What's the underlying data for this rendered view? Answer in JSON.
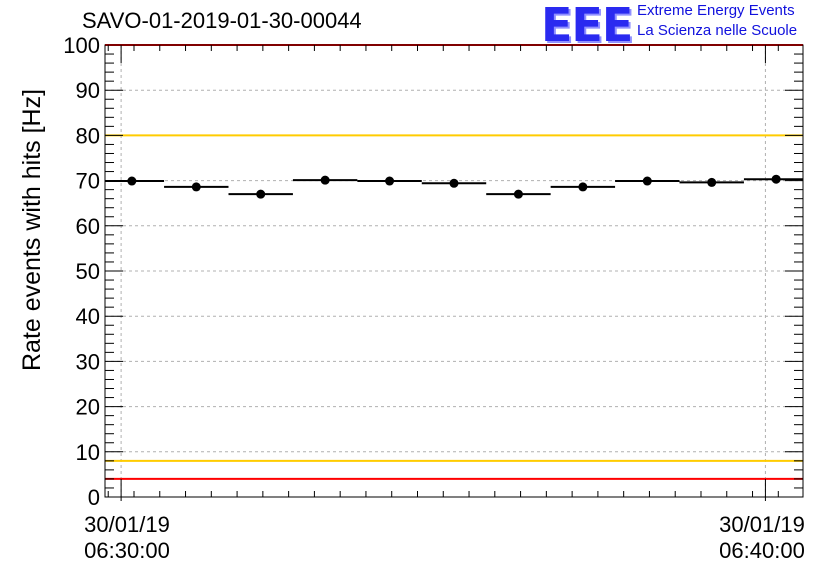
{
  "header": {
    "title": "SAVO-01-2019-01-30-00044",
    "logo_text": "EEE",
    "logo_line1": "Extreme Energy Events",
    "logo_line2": "La Scienza nelle Scuole"
  },
  "colors": {
    "red_limit": "#ff0000",
    "yellow_limit": "#ffcc00",
    "logo_blue": "#2a2af0"
  },
  "chart_data": {
    "type": "scatter",
    "title": "SAVO-01-2019-01-30-00044",
    "ylabel": "Rate events with hits [Hz]",
    "xlabel": "",
    "ylim": [
      0,
      100
    ],
    "yticks": [
      0,
      10,
      20,
      30,
      40,
      50,
      60,
      70,
      80,
      90,
      100
    ],
    "x_tick_labels": [
      {
        "date": "30/01/19",
        "time": "06:30:00"
      },
      {
        "date": "30/01/19",
        "time": "06:40:00"
      }
    ],
    "x_range": [
      "2019-01-30 06:29:45",
      "2019-01-30 06:40:35"
    ],
    "grid": true,
    "bin_width_seconds": 60,
    "points": [
      {
        "x": "2019-01-30 06:30:10",
        "y": 69.9
      },
      {
        "x": "2019-01-30 06:31:10",
        "y": 68.6
      },
      {
        "x": "2019-01-30 06:32:10",
        "y": 67.0
      },
      {
        "x": "2019-01-30 06:33:10",
        "y": 70.1
      },
      {
        "x": "2019-01-30 06:34:10",
        "y": 69.9
      },
      {
        "x": "2019-01-30 06:35:10",
        "y": 69.4
      },
      {
        "x": "2019-01-30 06:36:10",
        "y": 67.0
      },
      {
        "x": "2019-01-30 06:37:10",
        "y": 68.6
      },
      {
        "x": "2019-01-30 06:38:10",
        "y": 69.9
      },
      {
        "x": "2019-01-30 06:39:10",
        "y": 69.6
      },
      {
        "x": "2019-01-30 06:40:10",
        "y": 70.3
      }
    ],
    "reference_lines": [
      {
        "y": 100,
        "color": "red"
      },
      {
        "y": 80,
        "color": "yellow"
      },
      {
        "y": 8,
        "color": "yellow"
      },
      {
        "y": 4,
        "color": "red"
      }
    ]
  }
}
